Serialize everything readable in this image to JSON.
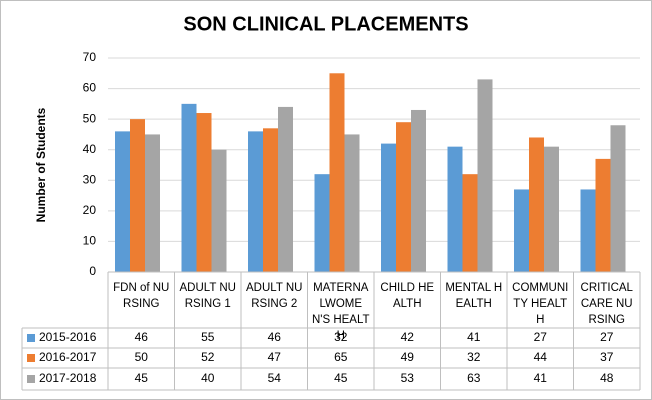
{
  "chart_data": {
    "type": "bar",
    "title": "SON CLINICAL PLACEMENTS",
    "y_label": "Number of Students",
    "categories": [
      "FDN of NURSING",
      "ADULT NURSING 1",
      "ADULT NURSING 2",
      "MATERNALWOMEN'S HEALTH",
      "CHILD HEALTH",
      "MENTAL HEALTH",
      "COMMUNITY HEALTH",
      "CRITICAL CARE NURSING"
    ],
    "series": [
      {
        "name": "2015-2016",
        "color": "#5b9bd5",
        "values": [
          46,
          55,
          46,
          32,
          42,
          41,
          27,
          27
        ]
      },
      {
        "name": "2016-2017",
        "color": "#ed7d31",
        "values": [
          50,
          52,
          47,
          65,
          49,
          32,
          44,
          37
        ]
      },
      {
        "name": "2017-2018",
        "color": "#a5a5a5",
        "values": [
          45,
          40,
          54,
          45,
          53,
          63,
          41,
          48
        ]
      }
    ],
    "ylim": [
      0,
      70
    ],
    "yticks": [
      0,
      10,
      20,
      30,
      40,
      50,
      60,
      70
    ],
    "grid": true,
    "data_table": true
  }
}
